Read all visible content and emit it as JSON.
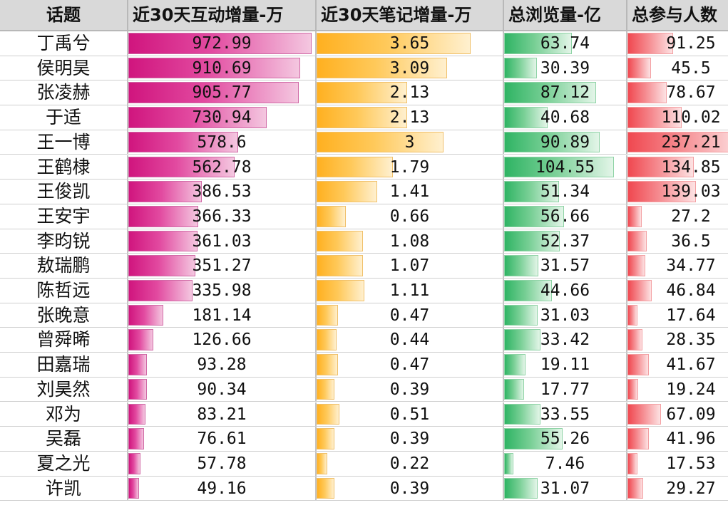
{
  "chart_data": {
    "type": "table",
    "columns": [
      "话题",
      "近30天互动增量-万",
      "近30天笔记增量-万",
      "总浏览量-亿",
      "总参与人数"
    ],
    "rows": [
      {
        "name": "丁禹兮",
        "values": [
          "972.99",
          "3.65",
          "63.74",
          "91.25"
        ]
      },
      {
        "name": "侯明昊",
        "values": [
          "910.69",
          "3.09",
          "30.39",
          "45.5"
        ]
      },
      {
        "name": "张凌赫",
        "values": [
          "905.77",
          "2.13",
          "87.12",
          "78.67"
        ]
      },
      {
        "name": "于适",
        "values": [
          "730.94",
          "2.13",
          "40.68",
          "110.02"
        ]
      },
      {
        "name": "王一博",
        "values": [
          "578.6",
          "3",
          "90.89",
          "237.21"
        ]
      },
      {
        "name": "王鹤棣",
        "values": [
          "562.78",
          "1.79",
          "104.55",
          "134.85"
        ]
      },
      {
        "name": "王俊凯",
        "values": [
          "386.53",
          "1.41",
          "51.34",
          "139.03"
        ]
      },
      {
        "name": "王安宇",
        "values": [
          "366.33",
          "0.66",
          "56.66",
          "27.2"
        ]
      },
      {
        "name": "李昀锐",
        "values": [
          "361.03",
          "1.08",
          "52.37",
          "36.5"
        ]
      },
      {
        "name": "敖瑞鹏",
        "values": [
          "351.27",
          "1.07",
          "31.57",
          "34.77"
        ]
      },
      {
        "name": "陈哲远",
        "values": [
          "335.98",
          "1.11",
          "44.66",
          "46.84"
        ]
      },
      {
        "name": "张晚意",
        "values": [
          "181.14",
          "0.47",
          "31.03",
          "17.64"
        ]
      },
      {
        "name": "曾舜晞",
        "values": [
          "126.66",
          "0.44",
          "33.42",
          "28.35"
        ]
      },
      {
        "name": "田嘉瑞",
        "values": [
          "93.28",
          "0.47",
          "19.11",
          "41.67"
        ]
      },
      {
        "name": "刘昊然",
        "values": [
          "90.34",
          "0.39",
          "17.77",
          "19.24"
        ]
      },
      {
        "name": "邓为",
        "values": [
          "83.21",
          "0.51",
          "33.55",
          "67.09"
        ]
      },
      {
        "name": "吴磊",
        "values": [
          "76.61",
          "0.39",
          "55.26",
          "41.96"
        ]
      },
      {
        "name": "夏之光",
        "values": [
          "57.78",
          "0.22",
          "7.46",
          "17.53"
        ]
      },
      {
        "name": "许凯",
        "values": [
          "49.16",
          "0.39",
          "31.07",
          "29.27"
        ]
      }
    ]
  }
}
